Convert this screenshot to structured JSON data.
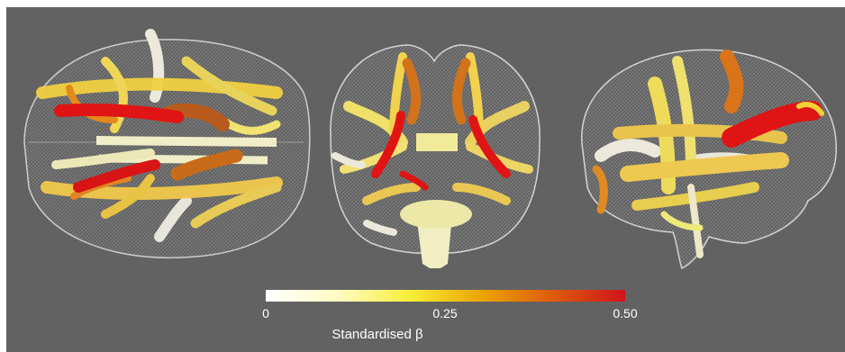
{
  "figure": {
    "views": [
      "axial",
      "coronal",
      "sagittal"
    ],
    "colors": {
      "background": "#626262",
      "mesh": "#cfcfcf",
      "tract_low": "#f2efe0",
      "tract_yellow": "#f1de3a",
      "tract_orange": "#e07a12",
      "tract_red": "#e01414"
    }
  },
  "colorbar": {
    "title": "Standardised β",
    "ticks": [
      "0",
      "0.25",
      "0.50"
    ],
    "range": [
      0,
      0.5
    ],
    "gradient": [
      "#ffffff",
      "#fffbc4",
      "#f7ee38",
      "#eba400",
      "#de5b0c",
      "#d0131c"
    ]
  }
}
